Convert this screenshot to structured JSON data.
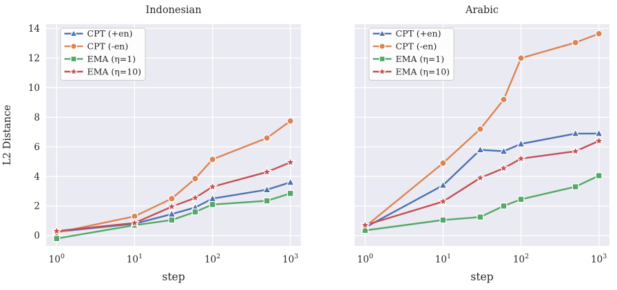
{
  "figure": {
    "background": "#ffffff",
    "plot_background": "#EAEAF2",
    "grid_color": "#ffffff",
    "text_color": "#262626",
    "legend_background": "#ffffff",
    "legend_border": "#cccccc"
  },
  "chart_data": [
    {
      "type": "line",
      "title": "Indonesian",
      "xlabel": "step",
      "ylabel": "L2 Distance",
      "xscale": "log",
      "grid": true,
      "legend_position": "upper-left",
      "x": [
        1,
        10,
        30,
        60,
        100,
        500,
        1000
      ],
      "xticks": [
        1,
        10,
        100,
        1000
      ],
      "xtick_labels": [
        "10^0",
        "10^1",
        "10^2",
        "10^3"
      ],
      "yticks": [
        0,
        2,
        4,
        6,
        8,
        10,
        12,
        14
      ],
      "ylim": [
        -0.7,
        14.3
      ],
      "xlim_log": [
        -0.135,
        3.135
      ],
      "show_ytick_labels": true,
      "series": [
        {
          "name": "CPT (+en)",
          "color": "#4C72B0",
          "marker": "triangle",
          "values": [
            0.25,
            0.8,
            1.45,
            1.9,
            2.5,
            3.1,
            3.6
          ]
        },
        {
          "name": "CPT (-en)",
          "color": "#DD8452",
          "marker": "circle",
          "values": [
            0.2,
            1.3,
            2.5,
            3.85,
            5.15,
            6.6,
            7.75
          ]
        },
        {
          "name": "EMA (η=1)",
          "color": "#55A868",
          "marker": "square",
          "values": [
            -0.2,
            0.7,
            1.05,
            1.6,
            2.1,
            2.35,
            2.85
          ]
        },
        {
          "name": "EMA (η=10)",
          "color": "#C44E52",
          "marker": "star",
          "values": [
            0.3,
            0.85,
            1.95,
            2.55,
            3.3,
            4.3,
            4.95
          ]
        }
      ]
    },
    {
      "type": "line",
      "title": "Arabic",
      "xlabel": "step",
      "ylabel": "",
      "xscale": "log",
      "grid": true,
      "legend_position": "upper-left",
      "x": [
        1,
        10,
        30,
        60,
        100,
        500,
        1000
      ],
      "xticks": [
        1,
        10,
        100,
        1000
      ],
      "xtick_labels": [
        "10^0",
        "10^1",
        "10^2",
        "10^3"
      ],
      "yticks": [
        0,
        2,
        4,
        6,
        8,
        10,
        12,
        14
      ],
      "ylim": [
        -0.7,
        14.3
      ],
      "xlim_log": [
        -0.135,
        3.135
      ],
      "show_ytick_labels": false,
      "series": [
        {
          "name": "CPT (+en)",
          "color": "#4C72B0",
          "marker": "triangle",
          "values": [
            0.55,
            3.4,
            5.8,
            5.7,
            6.2,
            6.9,
            6.9
          ]
        },
        {
          "name": "CPT (-en)",
          "color": "#DD8452",
          "marker": "circle",
          "values": [
            0.6,
            4.9,
            7.2,
            9.2,
            12.0,
            13.05,
            13.65
          ]
        },
        {
          "name": "EMA (η=1)",
          "color": "#55A868",
          "marker": "square",
          "values": [
            0.35,
            1.05,
            1.25,
            2.0,
            2.45,
            3.3,
            4.05
          ]
        },
        {
          "name": "EMA (η=10)",
          "color": "#C44E52",
          "marker": "star",
          "values": [
            0.7,
            2.3,
            3.9,
            4.55,
            5.2,
            5.7,
            6.4
          ]
        }
      ]
    }
  ]
}
